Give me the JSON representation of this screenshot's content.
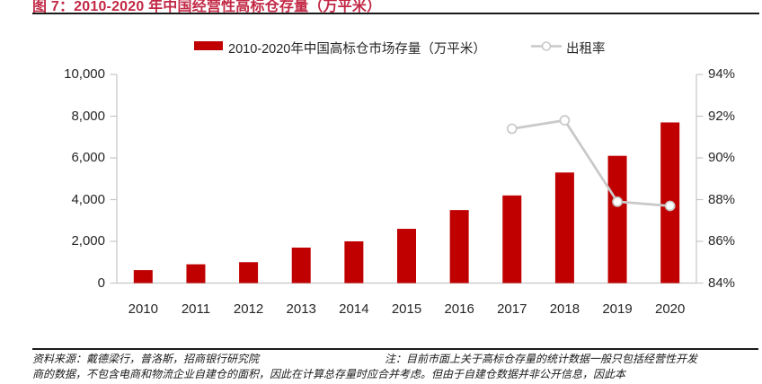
{
  "figure": {
    "title": "图 7：2010-2020 年中国经营性高标仓存量（万平米）",
    "source_note": "资料来源：戴德梁行，普洛斯，招商银行研究院",
    "note_line1": "注：目前市面上关于高标仓存量的统计数据一般只包括经营性开发",
    "note_line2": "商的数据，不包含电商和物流企业自建仓的面积，因此在计算总存量时应合并考虑。但由于自建仓数据并非公开信息，因此本"
  },
  "legend": {
    "bar_label": "2010-2020年中国高标仓市场存量（万平米）",
    "line_label": "出租率"
  },
  "colors": {
    "bar": "#C00000",
    "line": "#C9C9C9",
    "marker_fill": "#FFFFFF",
    "title": "#C22845",
    "axis": "#C6C6C6",
    "text": "#262626"
  },
  "chart_data": {
    "type": "bar",
    "categories": [
      "2010",
      "2011",
      "2012",
      "2013",
      "2014",
      "2015",
      "2016",
      "2017",
      "2018",
      "2019",
      "2020"
    ],
    "series": [
      {
        "name": "2010-2020年中国高标仓市场存量（万平米）",
        "type": "bar",
        "axis": "left",
        "values": [
          620,
          900,
          1000,
          1700,
          2000,
          2600,
          3500,
          4200,
          5300,
          6100,
          7700
        ]
      },
      {
        "name": "出租率",
        "type": "line",
        "axis": "right",
        "values": [
          null,
          null,
          null,
          null,
          null,
          null,
          null,
          91.4,
          91.8,
          87.9,
          87.7
        ]
      }
    ],
    "left_axis": {
      "min": 0,
      "max": 10000,
      "tick_labels": [
        "0",
        "2,000",
        "4,000",
        "6,000",
        "8,000",
        "10,000"
      ]
    },
    "right_axis": {
      "min": 84,
      "max": 94,
      "tick_labels": [
        "84%",
        "86%",
        "88%",
        "90%",
        "92%",
        "94%"
      ]
    },
    "grid": false,
    "legend_position": "top"
  }
}
